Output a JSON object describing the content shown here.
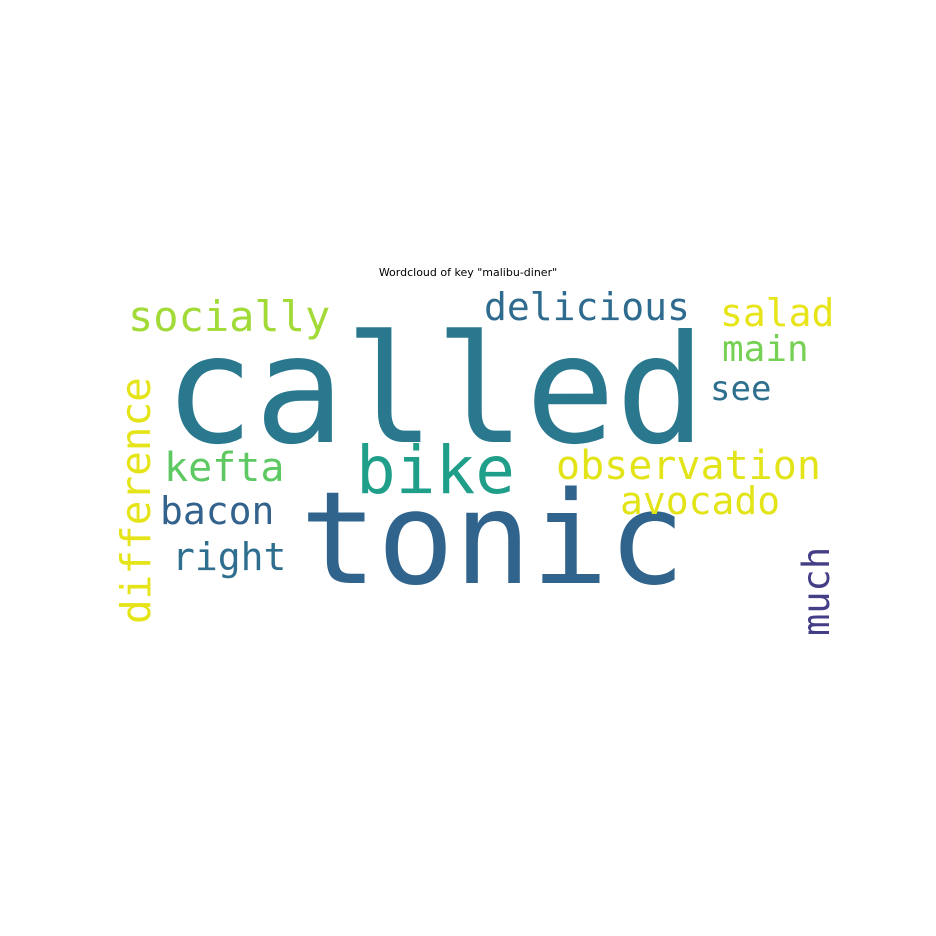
{
  "chart_data": {
    "type": "wordcloud",
    "title": "Wordcloud of key \"malibu-diner\"",
    "words": [
      {
        "text": "called",
        "weight": 1.0,
        "color": "#2a788e",
        "orientation": "horizontal"
      },
      {
        "text": "tonic",
        "weight": 0.98,
        "color": "#31648d",
        "orientation": "horizontal"
      },
      {
        "text": "bike",
        "weight": 0.55,
        "color": "#1f9e89",
        "orientation": "horizontal"
      },
      {
        "text": "observation",
        "weight": 0.35,
        "color": "#e2e418",
        "orientation": "horizontal"
      },
      {
        "text": "delicious",
        "weight": 0.32,
        "color": "#2f6b8e",
        "orientation": "horizontal"
      },
      {
        "text": "socially",
        "weight": 0.33,
        "color": "#a2da37",
        "orientation": "horizontal"
      },
      {
        "text": "salad",
        "weight": 0.32,
        "color": "#e7e419",
        "orientation": "horizontal"
      },
      {
        "text": "main",
        "weight": 0.3,
        "color": "#75d054",
        "orientation": "horizontal"
      },
      {
        "text": "see",
        "weight": 0.29,
        "color": "#2e6f8e",
        "orientation": "horizontal"
      },
      {
        "text": "kefta",
        "weight": 0.32,
        "color": "#5ec962",
        "orientation": "horizontal"
      },
      {
        "text": "avocado",
        "weight": 0.33,
        "color": "#e2e418",
        "orientation": "horizontal"
      },
      {
        "text": "bacon",
        "weight": 0.32,
        "color": "#33638d",
        "orientation": "horizontal"
      },
      {
        "text": "right",
        "weight": 0.32,
        "color": "#2e6e8e",
        "orientation": "horizontal"
      },
      {
        "text": "difference",
        "weight": 0.33,
        "color": "#e5e419",
        "orientation": "vertical"
      },
      {
        "text": "much",
        "weight": 0.32,
        "color": "#433e85",
        "orientation": "vertical"
      }
    ],
    "background": "#ffffff",
    "colormap": "viridis",
    "axis": "off"
  }
}
